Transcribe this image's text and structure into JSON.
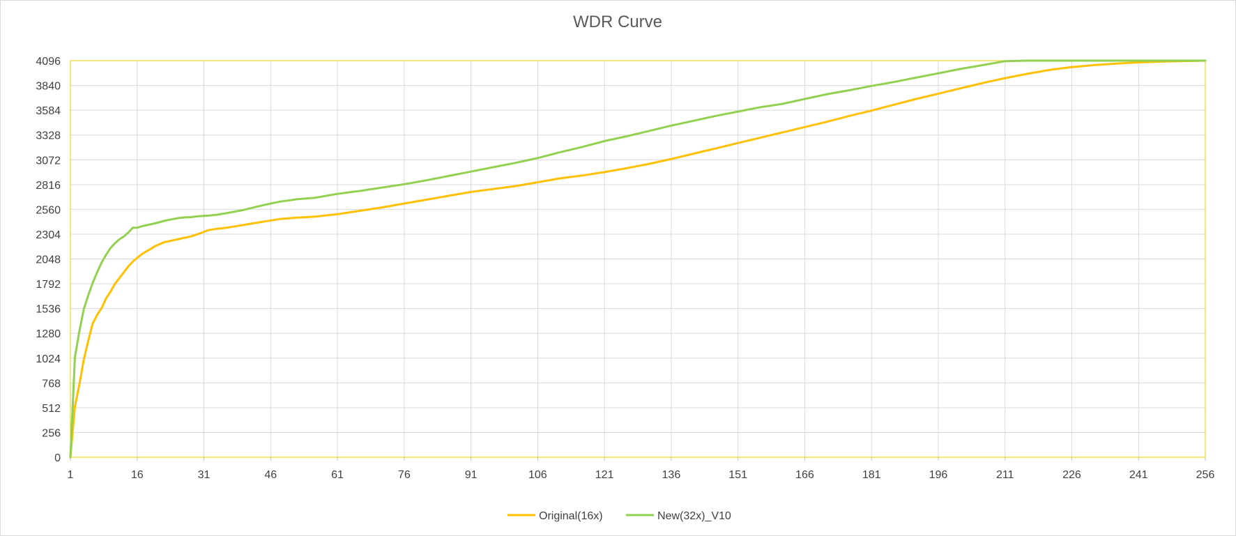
{
  "chart_data": {
    "type": "line",
    "title": "WDR Curve",
    "xlabel": "",
    "ylabel": "",
    "x_tick_labels": [
      "1",
      "16",
      "31",
      "46",
      "61",
      "76",
      "91",
      "106",
      "121",
      "136",
      "151",
      "166",
      "181",
      "196",
      "211",
      "226",
      "241",
      "256"
    ],
    "y_tick_labels": [
      "0",
      "256",
      "512",
      "768",
      "1024",
      "1280",
      "1536",
      "1792",
      "2048",
      "2304",
      "2560",
      "2816",
      "3072",
      "3328",
      "3584",
      "3840",
      "4096"
    ],
    "xlim": [
      1,
      256
    ],
    "ylim": [
      0,
      4096
    ],
    "grid": true,
    "legend_position": "bottom",
    "plot_border_color": "#e5d200",
    "series": [
      {
        "name": "Original(16x)",
        "color": "#ffc000",
        "x": [
          1,
          2,
          3,
          4,
          5,
          6,
          7,
          8,
          9,
          10,
          11,
          12,
          13,
          14,
          15,
          16,
          17,
          18,
          19,
          20,
          22,
          24,
          26,
          28,
          30,
          32,
          34,
          36,
          40,
          44,
          48,
          52,
          56,
          61,
          66,
          71,
          76,
          81,
          86,
          91,
          96,
          101,
          106,
          111,
          116,
          121,
          126,
          131,
          136,
          141,
          146,
          151,
          156,
          161,
          166,
          171,
          176,
          181,
          186,
          191,
          196,
          201,
          206,
          211,
          216,
          221,
          226,
          231,
          236,
          241,
          246,
          251,
          256
        ],
        "y": [
          0,
          520,
          750,
          1010,
          1200,
          1380,
          1470,
          1540,
          1640,
          1710,
          1790,
          1850,
          1910,
          1970,
          2020,
          2060,
          2095,
          2125,
          2150,
          2180,
          2220,
          2240,
          2260,
          2280,
          2310,
          2345,
          2360,
          2370,
          2400,
          2430,
          2460,
          2475,
          2485,
          2510,
          2545,
          2580,
          2620,
          2660,
          2700,
          2740,
          2770,
          2800,
          2840,
          2880,
          2910,
          2945,
          2985,
          3030,
          3080,
          3135,
          3190,
          3245,
          3300,
          3355,
          3410,
          3465,
          3525,
          3580,
          3640,
          3700,
          3755,
          3810,
          3865,
          3915,
          3960,
          4000,
          4030,
          4050,
          4065,
          4078,
          4086,
          4092,
          4096
        ]
      },
      {
        "name": "New(32x)_V10",
        "color": "#92d050",
        "x": [
          1,
          2,
          3,
          4,
          5,
          6,
          7,
          8,
          9,
          10,
          11,
          12,
          13,
          14,
          15,
          16,
          17,
          18,
          19,
          20,
          22,
          24,
          26,
          28,
          30,
          32,
          34,
          36,
          40,
          44,
          48,
          52,
          56,
          61,
          66,
          71,
          76,
          81,
          86,
          91,
          96,
          101,
          106,
          111,
          116,
          121,
          126,
          131,
          136,
          141,
          146,
          151,
          156,
          161,
          166,
          171,
          176,
          181,
          186,
          191,
          196,
          201,
          206,
          211,
          216,
          221,
          226,
          231,
          236,
          241,
          246,
          251,
          256
        ],
        "y": [
          0,
          1030,
          1300,
          1530,
          1670,
          1800,
          1910,
          2010,
          2090,
          2160,
          2210,
          2250,
          2280,
          2320,
          2370,
          2370,
          2385,
          2395,
          2405,
          2415,
          2440,
          2460,
          2475,
          2480,
          2490,
          2495,
          2505,
          2520,
          2555,
          2600,
          2640,
          2665,
          2680,
          2720,
          2750,
          2785,
          2820,
          2860,
          2905,
          2950,
          2995,
          3040,
          3090,
          3150,
          3205,
          3265,
          3315,
          3370,
          3425,
          3475,
          3525,
          3570,
          3615,
          3650,
          3700,
          3750,
          3790,
          3835,
          3875,
          3920,
          3965,
          4010,
          4050,
          4090,
          4096,
          4096,
          4096,
          4096,
          4096,
          4096,
          4096,
          4096,
          4096
        ]
      }
    ]
  }
}
